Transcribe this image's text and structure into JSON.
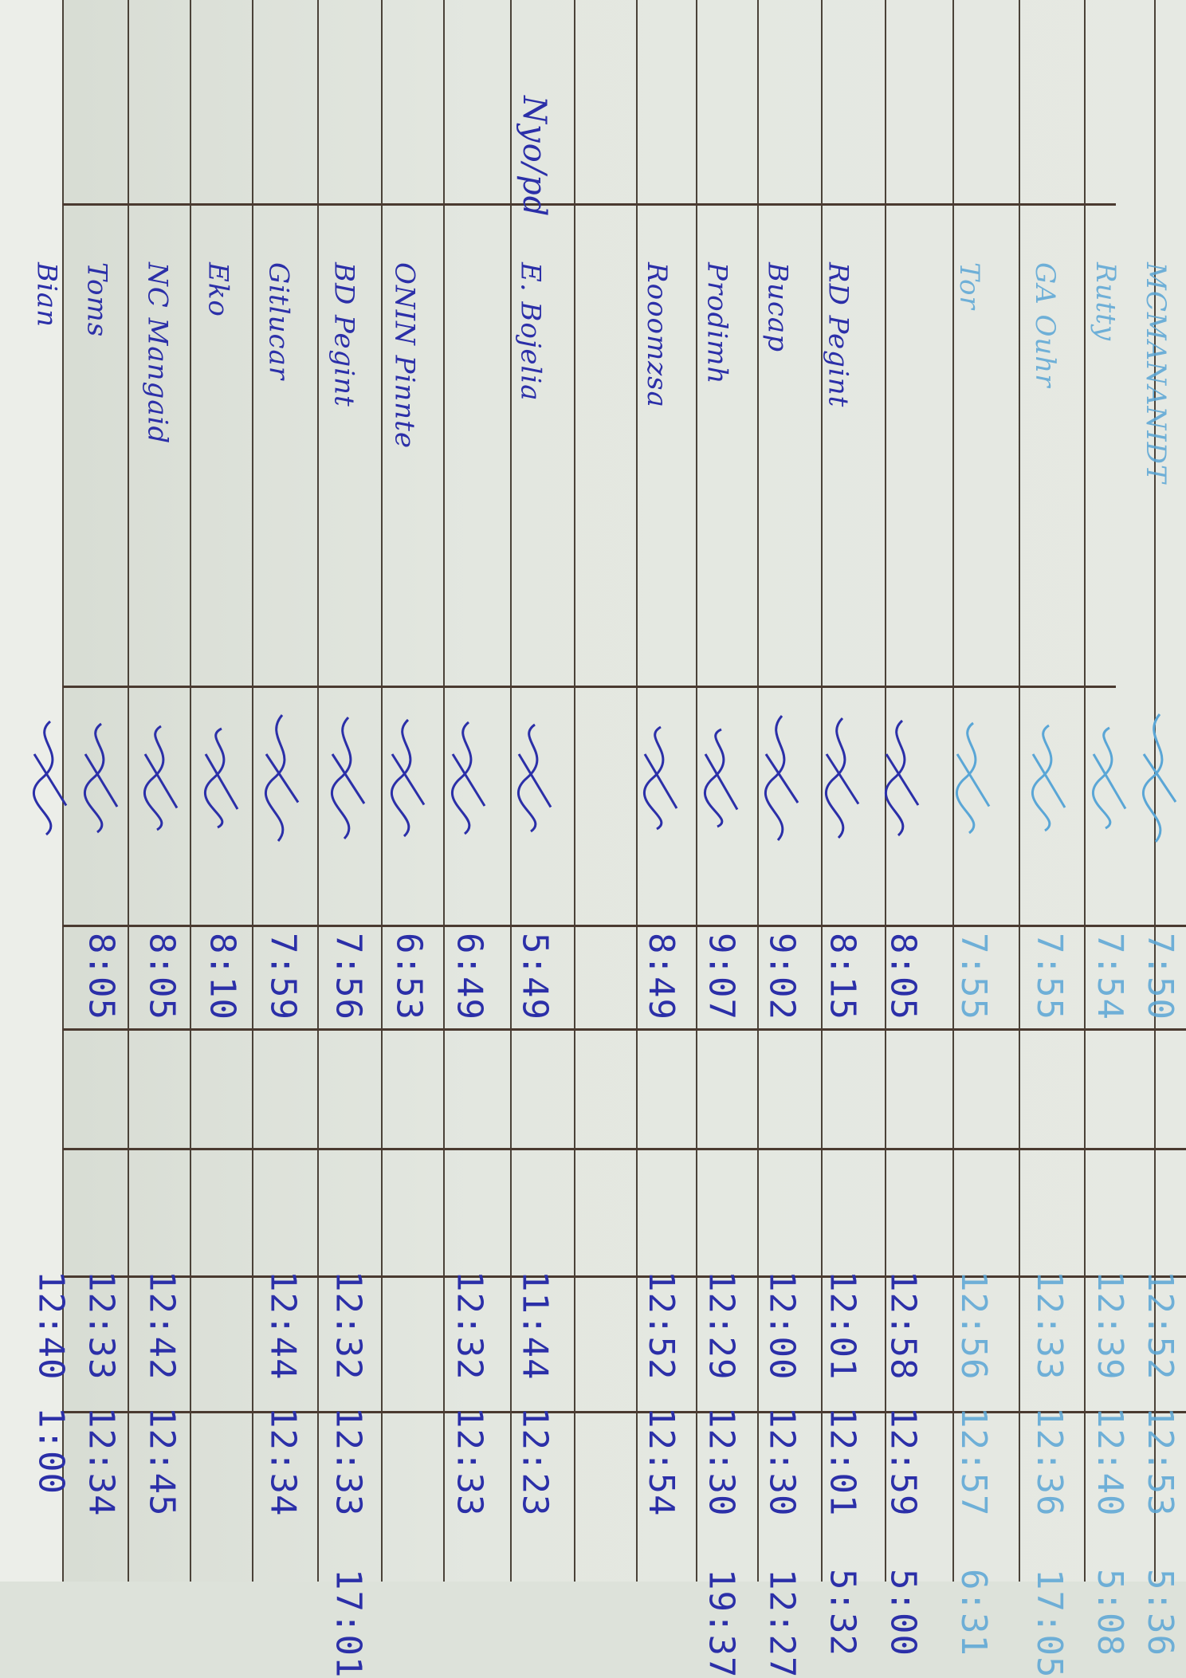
{
  "ink_color": "#2b2fa8",
  "faint_ink_color": "#5aa6d6",
  "header_note": "Nyo/pd",
  "rows": [
    {
      "name": "MCMANANIDT",
      "time_in": "7:50",
      "lunch_out": "12:52",
      "lunch_in": "12:53",
      "time_out": "5:36",
      "faint": true
    },
    {
      "name": "Rutty",
      "time_in": "7:54",
      "lunch_out": "12:39",
      "lunch_in": "12:40",
      "time_out": "5:08",
      "faint": true
    },
    {
      "name": "GA Ouhr",
      "time_in": "7:55",
      "lunch_out": "12:33",
      "lunch_in": "12:36",
      "time_out": "17:05",
      "faint": true
    },
    {
      "name": "Tor",
      "time_in": "7:55",
      "lunch_out": "12:56",
      "lunch_in": "12:57",
      "time_out": "6:31",
      "faint": true
    },
    {
      "name": "",
      "time_in": "8:05",
      "lunch_out": "12:58",
      "lunch_in": "12:59",
      "time_out": "5:00",
      "faint": false
    },
    {
      "name": "RD Pegint",
      "time_in": "8:15",
      "lunch_out": "12:01",
      "lunch_in": "12:01",
      "time_out": "5:32",
      "faint": false
    },
    {
      "name": "Bucap",
      "time_in": "9:02",
      "lunch_out": "12:00",
      "lunch_in": "12:30",
      "time_out": "12:27",
      "faint": false
    },
    {
      "name": "Prodimh",
      "time_in": "9:07",
      "lunch_out": "12:29",
      "lunch_in": "12:30",
      "time_out": "19:37",
      "faint": false
    },
    {
      "name": "Rooomzsa",
      "time_in": "8:49",
      "lunch_out": "12:52",
      "lunch_in": "12:54",
      "time_out": "",
      "faint": false
    },
    {
      "name": "E. Bojelia",
      "time_in": "5:49",
      "lunch_out": "11:44",
      "lunch_in": "12:23",
      "time_out": "",
      "faint": false
    },
    {
      "name": "",
      "time_in": "6:49",
      "lunch_out": "12:32",
      "lunch_in": "12:33",
      "time_out": "",
      "faint": false
    },
    {
      "name": "ONIN Pinnte",
      "time_in": "6:53",
      "lunch_out": "",
      "lunch_in": "",
      "time_out": "",
      "faint": false
    },
    {
      "name": "BD Pegint",
      "time_in": "7:56",
      "lunch_out": "12:32",
      "lunch_in": "12:33",
      "time_out": "17:01",
      "faint": false
    },
    {
      "name": "Gitlucar",
      "time_in": "7:59",
      "lunch_out": "12:44",
      "lunch_in": "12:34",
      "time_out": "",
      "faint": false
    },
    {
      "name": "Eko",
      "time_in": "8:10",
      "lunch_out": "",
      "lunch_in": "",
      "time_out": "",
      "faint": false
    },
    {
      "name": "NC Mangaid",
      "time_in": "8:05",
      "lunch_out": "12:42",
      "lunch_in": "12:45",
      "time_out": "",
      "faint": false
    },
    {
      "name": "Toms",
      "time_in": "8:05",
      "lunch_out": "12:33",
      "lunch_in": "12:34",
      "time_out": "",
      "faint": false
    },
    {
      "name": "Bian",
      "time_in": "",
      "lunch_out": "12:40",
      "lunch_in": "1:00",
      "time_out": "",
      "faint": false
    }
  ]
}
